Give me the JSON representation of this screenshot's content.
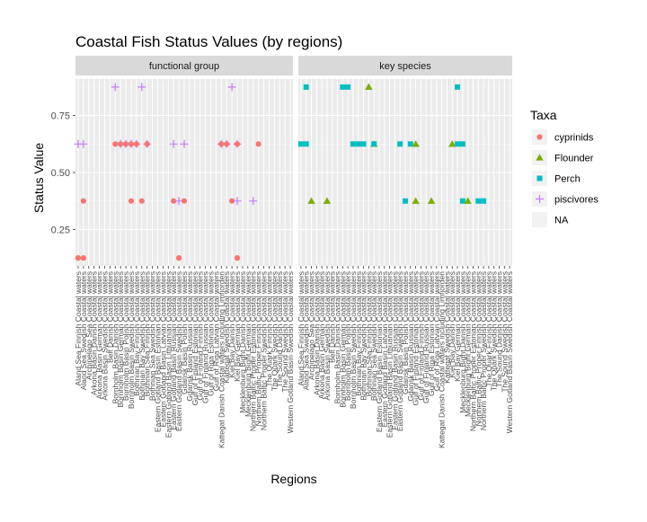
{
  "chart_data": {
    "type": "scatter",
    "title": "Coastal Fish Status Values (by regions)",
    "xlabel": "Regions",
    "ylabel": "Status Value",
    "ylim": [
      0.09,
      0.91
    ],
    "yticks": [
      0.25,
      0.5,
      0.75
    ],
    "grid": true,
    "legend_position": "right",
    "legend_title": "Taxa",
    "series": [
      {
        "name": "cyprinids",
        "color": "#F8766D",
        "shape": "circle"
      },
      {
        "name": "Flounder",
        "color": "#7CAE00",
        "shape": "triangle"
      },
      {
        "name": "Perch",
        "color": "#00BFC4",
        "shape": "square"
      },
      {
        "name": "piscivores",
        "color": "#C77CFF",
        "shape": "plus"
      },
      {
        "name": "NA",
        "color": "#ffffff",
        "shape": "none"
      }
    ],
    "panels": [
      {
        "label": "functional group",
        "categories": [
          "Aland Sea Finnish Coastal waters",
          "Aland Sea Swedish Coastal waters",
          "Archipelago Sea Coastal waters",
          "Arkona Basin Danish Coastal waters",
          "Arkona Basin German Coastal waters",
          "Arkona Basin Swedish Coastal waters",
          "Belt Danish Coastal waters",
          "Bornholm Basin Danish Coastal waters",
          "Bornholm Basin German Coastal waters",
          "Bornholm Basin Polish Coastal waters",
          "Bornholm Basin Swedish Coastal waters",
          "Bothnian Bay Finnish Coastal waters",
          "Bothnian Bay Swedish Coastal waters",
          "Bothnian Sea Finnish Coastal waters",
          "Bothnian Sea Swedish Coastal waters",
          "Eastern Gotland Basin Estonian Coastal waters",
          "Eastern Gotland Basin Latvian Coastal waters",
          "Eastern Gotland Basin Lithuanian Coastal waters",
          "Eastern Gotland Basin Russian Coastal waters",
          "Eastern Gotland Basin Swedish Coastal waters",
          "Gdansk Basin Polish Coastal waters",
          "Gdansk Basin Russian Coastal waters",
          "Gulf of Finland Estonian Coastal waters",
          "Gulf of Finland Finnish Coastal waters",
          "Gulf of Finland Russian Coastal waters",
          "Gulf of Riga Estonian Coastal waters",
          "Gulf of Riga Latvian Coastal waters",
          "Kattegat Danish Coastal waters including Limfjorden",
          "Kattegat Swedish Coastal waters",
          "Kiel Bay Danish Coastal waters",
          "Kiel Bay German Coastal waters",
          "Mecklenburg Bight Danish Coastal waters",
          "Mecklenburg Bight German Coastal waters",
          "Northern Baltic Proper Estonian Coastal waters",
          "Northern Baltic Proper Finnish Coastal waters",
          "Northern Baltic Proper Swedish Coastal waters",
          "The Quark Finnish Coastal waters",
          "The Quark Swedish Coastal waters",
          "The Sound Danish Coastal waters",
          "The Sound Swedish Coastal waters",
          "Western Gotland Basin Swedish Coastal waters"
        ],
        "points": [
          {
            "series": "piscivores",
            "x": 0,
            "y": 0.625
          },
          {
            "series": "cyprinids",
            "x": 0,
            "y": 0.125
          },
          {
            "series": "piscivores",
            "x": 1,
            "y": 0.625
          },
          {
            "series": "cyprinids",
            "x": 1,
            "y": 0.125
          },
          {
            "series": "cyprinids",
            "x": 1,
            "y": 0.375
          },
          {
            "series": "piscivores",
            "x": 7,
            "y": 0.875
          },
          {
            "series": "cyprinids",
            "x": 7,
            "y": 0.625
          },
          {
            "series": "piscivores",
            "x": 8,
            "y": 0.625
          },
          {
            "series": "cyprinids",
            "x": 8,
            "y": 0.625
          },
          {
            "series": "piscivores",
            "x": 9,
            "y": 0.625
          },
          {
            "series": "cyprinids",
            "x": 9,
            "y": 0.625
          },
          {
            "series": "piscivores",
            "x": 10,
            "y": 0.625
          },
          {
            "series": "cyprinids",
            "x": 10,
            "y": 0.625
          },
          {
            "series": "piscivores",
            "x": 11,
            "y": 0.625
          },
          {
            "series": "cyprinids",
            "x": 11,
            "y": 0.625
          },
          {
            "series": "cyprinids",
            "x": 10,
            "y": 0.375
          },
          {
            "series": "cyprinids",
            "x": 12,
            "y": 0.375
          },
          {
            "series": "piscivores",
            "x": 12,
            "y": 0.875
          },
          {
            "series": "piscivores",
            "x": 13,
            "y": 0.625
          },
          {
            "series": "cyprinids",
            "x": 13,
            "y": 0.625
          },
          {
            "series": "piscivores",
            "x": 18,
            "y": 0.625
          },
          {
            "series": "cyprinids",
            "x": 18,
            "y": 0.375
          },
          {
            "series": "piscivores",
            "x": 19,
            "y": 0.375
          },
          {
            "series": "cyprinids",
            "x": 19,
            "y": 0.125
          },
          {
            "series": "piscivores",
            "x": 20,
            "y": 0.625
          },
          {
            "series": "cyprinids",
            "x": 20,
            "y": 0.375
          },
          {
            "series": "piscivores",
            "x": 27,
            "y": 0.625
          },
          {
            "series": "cyprinids",
            "x": 27,
            "y": 0.625
          },
          {
            "series": "piscivores",
            "x": 28,
            "y": 0.625
          },
          {
            "series": "cyprinids",
            "x": 28,
            "y": 0.625
          },
          {
            "series": "piscivores",
            "x": 29,
            "y": 0.875
          },
          {
            "series": "cyprinids",
            "x": 29,
            "y": 0.375
          },
          {
            "series": "piscivores",
            "x": 30,
            "y": 0.625
          },
          {
            "series": "cyprinids",
            "x": 30,
            "y": 0.625
          },
          {
            "series": "piscivores",
            "x": 30,
            "y": 0.375
          },
          {
            "series": "cyprinids",
            "x": 30,
            "y": 0.125
          },
          {
            "series": "piscivores",
            "x": 33,
            "y": 0.375
          },
          {
            "series": "cyprinids",
            "x": 34,
            "y": 0.625
          }
        ]
      },
      {
        "label": "key species",
        "categories": [
          "Aland Sea Finnish Coastal waters",
          "Aland Sea Swedish Coastal waters",
          "Archipelago Sea Coastal waters",
          "Arkona Basin Danish Coastal waters",
          "Arkona Basin German Coastal waters",
          "Arkona Basin Swedish Coastal waters",
          "Belt Danish Coastal waters",
          "Bornholm Basin Danish Coastal waters",
          "Bornholm Basin German Coastal waters",
          "Bornholm Basin Polish Coastal waters",
          "Bornholm Basin Swedish Coastal waters",
          "Bothnian Bay Finnish Coastal waters",
          "Bothnian Bay Swedish Coastal waters",
          "Bothnian Sea Finnish Coastal waters",
          "Bothnian Sea Swedish Coastal waters",
          "Eastern Gotland Basin Estonian Coastal waters",
          "Eastern Gotland Basin Latvian Coastal waters",
          "Eastern Gotland Basin Lithuanian Coastal waters",
          "Eastern Gotland Basin Russian Coastal waters",
          "Eastern Gotland Basin Swedish Coastal waters",
          "Gdansk Basin Polish Coastal waters",
          "Gdansk Basin Russian Coastal waters",
          "Gulf of Finland Estonian Coastal waters",
          "Gulf of Finland Finnish Coastal waters",
          "Gulf of Finland Russian Coastal waters",
          "Gulf of Riga Estonian Coastal waters",
          "Gulf of Riga Latvian Coastal waters",
          "Kattegat Danish Coastal waters including Limfjorden",
          "Kattegat Swedish Coastal waters",
          "Kiel Bay Danish Coastal waters",
          "Kiel Bay German Coastal waters",
          "Mecklenburg Bight Danish Coastal waters",
          "Mecklenburg Bight German Coastal waters",
          "Northern Baltic Proper Estonian Coastal waters",
          "Northern Baltic Proper Finnish Coastal waters",
          "Northern Baltic Proper Swedish Coastal waters",
          "The Quark Finnish Coastal waters",
          "The Quark Swedish Coastal waters",
          "The Sound Danish Coastal waters",
          "The Sound Swedish Coastal waters",
          "Western Gotland Basin Swedish Coastal waters"
        ],
        "points": [
          {
            "series": "Perch",
            "x": 0,
            "y": 0.625
          },
          {
            "series": "Perch",
            "x": 1,
            "y": 0.625
          },
          {
            "series": "Perch",
            "x": 1,
            "y": 0.875
          },
          {
            "series": "Flounder",
            "x": 2,
            "y": 0.375
          },
          {
            "series": "Flounder",
            "x": 5,
            "y": 0.375
          },
          {
            "series": "Perch",
            "x": 8,
            "y": 0.875
          },
          {
            "series": "Perch",
            "x": 9,
            "y": 0.875
          },
          {
            "series": "Perch",
            "x": 10,
            "y": 0.625
          },
          {
            "series": "Perch",
            "x": 11,
            "y": 0.625
          },
          {
            "series": "Perch",
            "x": 12,
            "y": 0.625
          },
          {
            "series": "Flounder",
            "x": 13,
            "y": 0.875
          },
          {
            "series": "Flounder",
            "x": 14,
            "y": 0.625
          },
          {
            "series": "Perch",
            "x": 14,
            "y": 0.625
          },
          {
            "series": "Perch",
            "x": 19,
            "y": 0.625
          },
          {
            "series": "Perch",
            "x": 20,
            "y": 0.375
          },
          {
            "series": "Perch",
            "x": 21,
            "y": 0.625
          },
          {
            "series": "Flounder",
            "x": 22,
            "y": 0.625
          },
          {
            "series": "Flounder",
            "x": 22,
            "y": 0.375
          },
          {
            "series": "Flounder",
            "x": 25,
            "y": 0.375
          },
          {
            "series": "Flounder",
            "x": 29,
            "y": 0.625
          },
          {
            "series": "Perch",
            "x": 30,
            "y": 0.875
          },
          {
            "series": "Perch",
            "x": 30,
            "y": 0.625
          },
          {
            "series": "Perch",
            "x": 31,
            "y": 0.625
          },
          {
            "series": "Perch",
            "x": 31,
            "y": 0.375
          },
          {
            "series": "Flounder",
            "x": 32,
            "y": 0.375
          },
          {
            "series": "Perch",
            "x": 34,
            "y": 0.375
          },
          {
            "series": "Perch",
            "x": 35,
            "y": 0.375
          }
        ]
      }
    ]
  }
}
